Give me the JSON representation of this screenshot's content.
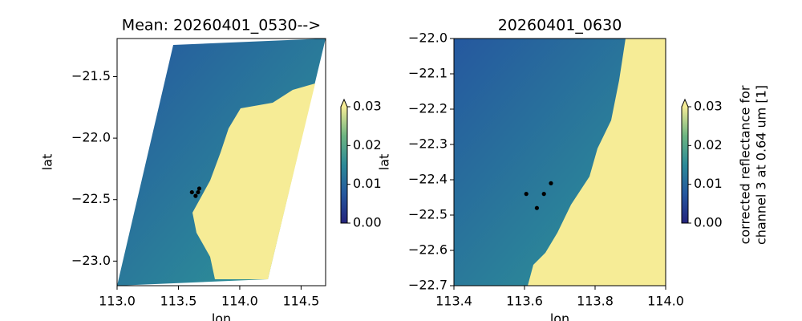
{
  "chart_data": [
    {
      "type": "image",
      "title": "Mean: 20260401_0530-->",
      "xlabel": "lon",
      "ylabel": "lat",
      "xlim": [
        113.0,
        114.7
      ],
      "ylim": [
        -23.2,
        -21.19
      ],
      "xticks": [
        {
          "value": 113.0,
          "label": "113.0"
        },
        113.5,
        {
          "value": 114.0,
          "label": "114.0"
        },
        114.5
      ],
      "yticks": [
        {
          "value": -21.5,
          "label": "−21.5"
        },
        {
          "value": -22.0,
          "label": "−22.0"
        },
        {
          "value": -22.5,
          "label": "−22.5"
        },
        {
          "value": -23.0,
          "label": "−23.0"
        }
      ],
      "points": {
        "color": "#000000",
        "x": [
          113.61,
          113.64,
          113.66,
          113.67
        ],
        "y": [
          -22.44,
          -22.47,
          -22.44,
          -22.41
        ]
      },
      "colorbar": {
        "clim": [
          0,
          0.03
        ],
        "extend": "max",
        "colors": [
          "#24237c",
          "#25589f",
          "#2c8a98",
          "#6db582",
          "#f6ec96"
        ],
        "ticks": [
          {
            "value": 0,
            "label": "0.00"
          },
          0.01,
          0.02,
          0.03
        ]
      }
    },
    {
      "type": "image",
      "title": "20260401_0630",
      "xlabel": "lon",
      "ylabel": "lat",
      "xlim": [
        113.4,
        114.0
      ],
      "ylim": [
        -22.7,
        -22.0
      ],
      "xticks": [
        113.4,
        113.6,
        113.8,
        {
          "value": 114.0,
          "label": "114.0"
        }
      ],
      "yticks": [
        {
          "value": -22.0,
          "label": "−22.0"
        },
        {
          "value": -22.1,
          "label": "−22.1"
        },
        {
          "value": -22.2,
          "label": "−22.2"
        },
        {
          "value": -22.3,
          "label": "−22.3"
        },
        {
          "value": -22.4,
          "label": "−22.4"
        },
        {
          "value": -22.5,
          "label": "−22.5"
        },
        {
          "value": -22.6,
          "label": "−22.6"
        },
        {
          "value": -22.7,
          "label": "−22.7"
        }
      ],
      "points": {
        "color": "#000000",
        "x": [
          113.605,
          113.635,
          113.655,
          113.675
        ],
        "y": [
          -22.44,
          -22.48,
          -22.44,
          -22.41
        ]
      },
      "colorbar": {
        "clim": [
          0,
          0.03
        ],
        "extend": "max",
        "colors": [
          "#24237c",
          "#25589f",
          "#2c8a98",
          "#6db582",
          "#f6ec96"
        ],
        "ticks": [
          {
            "value": 0,
            "label": "0.00"
          },
          0.01,
          0.02,
          0.03
        ],
        "label": [
          "corrected reflectance for",
          "channel 3 at 0.64 um [1]"
        ]
      }
    }
  ]
}
